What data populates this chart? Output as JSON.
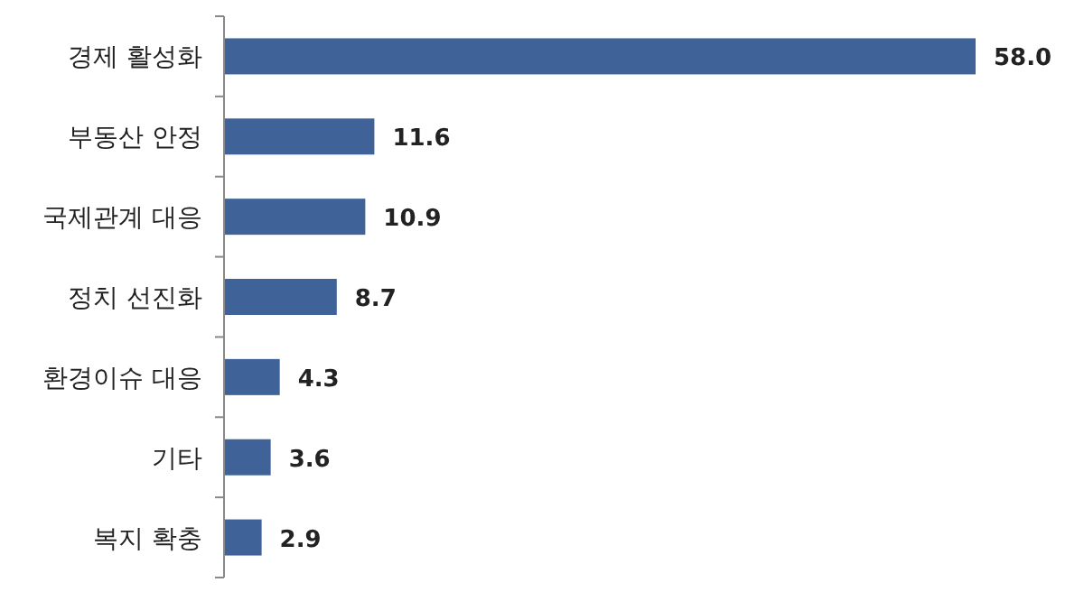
{
  "chart_data": {
    "type": "bar",
    "orientation": "horizontal",
    "categories": [
      "경제 활성화",
      "부동산 안정",
      "국제관계 대응",
      "정치 선진화",
      "환경이슈 대응",
      "기타",
      "복지 확충"
    ],
    "values": [
      58.0,
      11.6,
      10.9,
      8.7,
      4.3,
      3.6,
      2.9
    ],
    "value_labels": [
      "58.0",
      "11.6",
      "10.9",
      "8.7",
      "4.3",
      "3.6",
      "2.9"
    ],
    "color": "#3f6399",
    "legend": false,
    "grid": false
  }
}
